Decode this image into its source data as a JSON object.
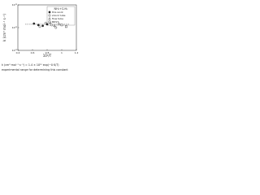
{
  "chart_data": {
    "type": "scatter",
    "title": "NH₂+C₂H₂",
    "xlabel": "10⁴/T",
    "ylabel": "k (cm³ mol⁻¹ s⁻¹)",
    "log_y": true,
    "legend": "upper right",
    "xlim": [
      0.4,
      1.2
    ],
    "xticks": [
      0.4,
      0.6,
      0.8,
      1,
      1.2
    ],
    "ylim": [
      100000000000,
      10000000000000
    ],
    "yticks": [
      {
        "value": 100000000000,
        "label": "10¹¹"
      },
      {
        "value": 1000000000000,
        "label": "10¹²"
      },
      {
        "value": 10000000000000,
        "label": "10¹³"
      }
    ],
    "series": [
      {
        "name": "this work",
        "color": "#222222",
        "marker": "filled-circle",
        "x": [
          0.62,
          0.68,
          0.74,
          0.8
        ],
        "values": [
          1500000000000,
          1300000000000,
          1200000000000,
          1400000000000
        ]
      },
      {
        "name": "shock tube",
        "color": "#222222",
        "marker": "open-circle",
        "x": [
          0.7,
          0.78,
          0.86,
          0.92
        ],
        "values": [
          1100000000000,
          1600000000000,
          1300000000000,
          1000000000000
        ]
      },
      {
        "name": "flow tube",
        "color": "#222222",
        "marker": "open-triangle",
        "x": [
          0.84,
          0.9,
          0.96
        ],
        "values": [
          1700000000000,
          1200000000000,
          1500000000000
        ]
      },
      {
        "name": "BDST",
        "color": "#222222",
        "marker": "open-square",
        "x": [
          1.0,
          1.06
        ],
        "values": [
          1300000000000,
          1100000000000
        ]
      }
    ],
    "fit": {
      "x": [
        0.5,
        1.1
      ],
      "values": [
        1400000000000,
        1400000000000
      ]
    },
    "caption": [
      "k (cm³ mol⁻¹ s⁻¹) = 1.4 × 10¹² exp(−0 K/T)",
      "experimental range for determining this constant"
    ]
  }
}
